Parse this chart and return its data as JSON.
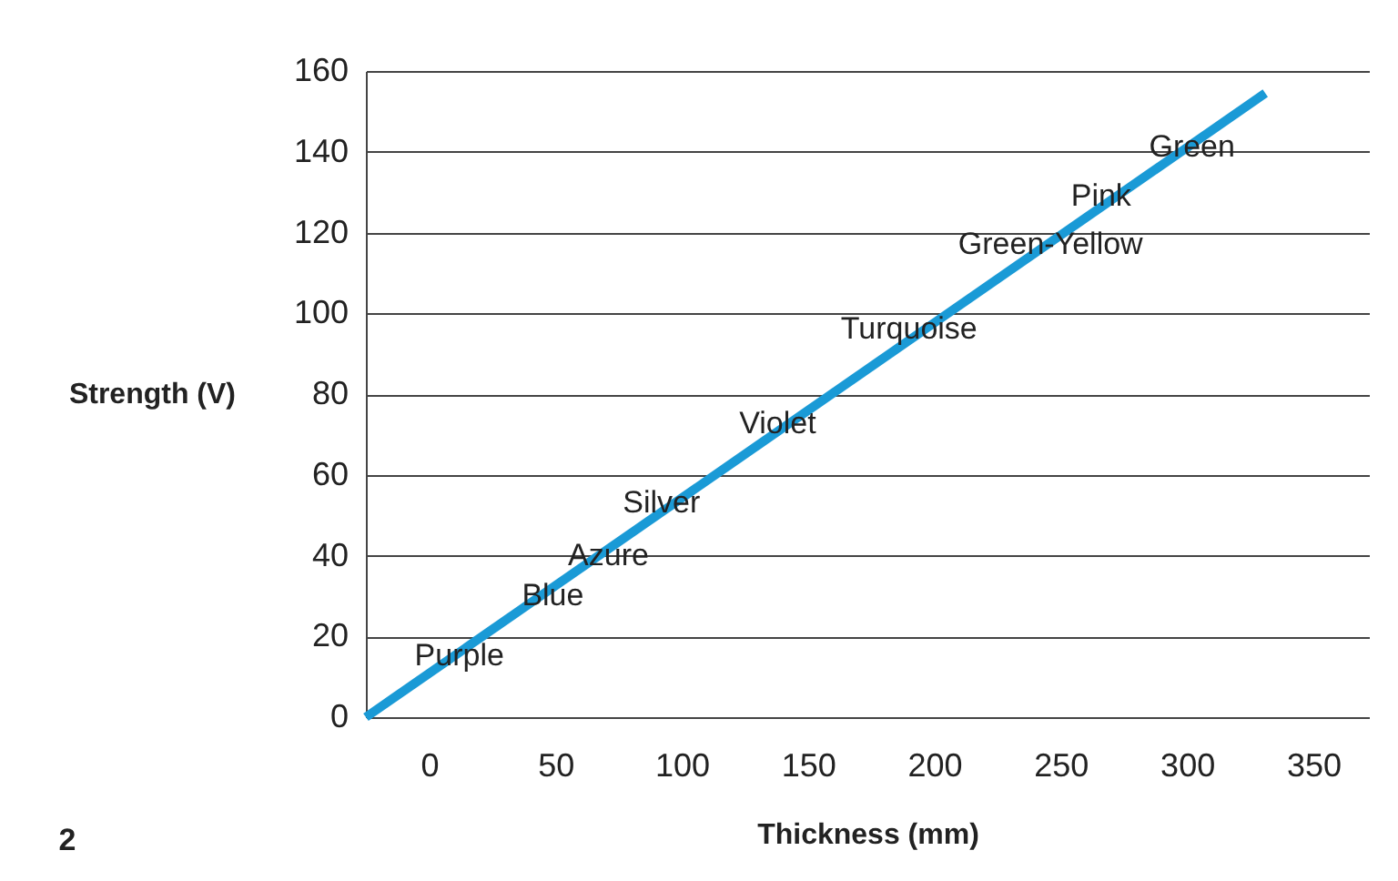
{
  "chart_data": {
    "type": "line",
    "xlabel": "Thickness (mm)",
    "ylabel": "Strength (V)",
    "xlim": [
      -25,
      372
    ],
    "xticks": [
      0,
      50,
      100,
      150,
      200,
      250,
      300,
      350
    ],
    "ylim": [
      0,
      160
    ],
    "yticks": [
      0,
      20,
      40,
      60,
      80,
      100,
      120,
      140,
      160
    ],
    "grid": "y",
    "marker": "none",
    "line_style": "solid",
    "series": [
      {
        "color": "#1a9ad6",
        "x": [
          -25,
          331
        ],
        "values": [
          0,
          154.5
        ]
      }
    ],
    "annotations": [
      {
        "text": "Purple",
        "x": 12,
        "y": 15
      },
      {
        "text": "Blue",
        "x": 49,
        "y": 30
      },
      {
        "text": "Azure",
        "x": 71,
        "y": 40
      },
      {
        "text": "Silver",
        "x": 92,
        "y": 53
      },
      {
        "text": "Violet",
        "x": 138,
        "y": 72.5
      },
      {
        "text": "Turquoise",
        "x": 190,
        "y": 96
      },
      {
        "text": "Green-Yellow",
        "x": 246,
        "y": 117
      },
      {
        "text": "Pink",
        "x": 266,
        "y": 129
      },
      {
        "text": "Green",
        "x": 302,
        "y": 141
      },
      "2"
    ]
  }
}
